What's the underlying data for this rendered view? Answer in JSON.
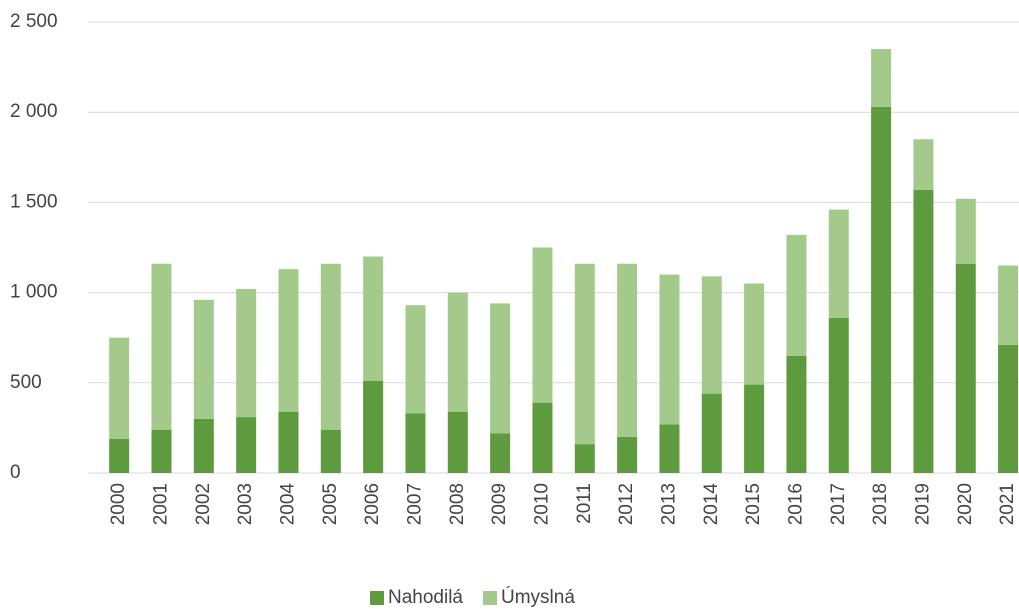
{
  "chart_data": {
    "type": "stacked_bar",
    "categories": [
      "2000",
      "2001",
      "2002",
      "2003",
      "2004",
      "2005",
      "2006",
      "2007",
      "2008",
      "2009",
      "2010",
      "2011",
      "2012",
      "2013",
      "2014",
      "2015",
      "2016",
      "2017",
      "2018",
      "2019",
      "2020",
      "2021"
    ],
    "series": [
      {
        "name": "Nahodilá",
        "color": "#5e9a3e",
        "values": [
          190,
          240,
          300,
          310,
          340,
          240,
          510,
          330,
          340,
          220,
          390,
          160,
          200,
          270,
          440,
          490,
          650,
          860,
          2030,
          1570,
          1160,
          710
        ]
      },
      {
        "name": "Úmyslná",
        "color": "#a3c98b",
        "values": [
          560,
          920,
          660,
          710,
          790,
          920,
          690,
          600,
          660,
          720,
          860,
          1000,
          960,
          830,
          650,
          560,
          670,
          600,
          320,
          280,
          360,
          440
        ]
      }
    ],
    "ylim": [
      0,
      2500
    ],
    "yticks": [
      0,
      500,
      {
        "value": 1000,
        "label": "1 000"
      },
      {
        "value": 1500,
        "label": "1 500"
      },
      {
        "value": 2000,
        "label": "2 000"
      },
      {
        "value": 2500,
        "label": "2 500"
      }
    ],
    "grid": true,
    "legend": "bottom"
  }
}
